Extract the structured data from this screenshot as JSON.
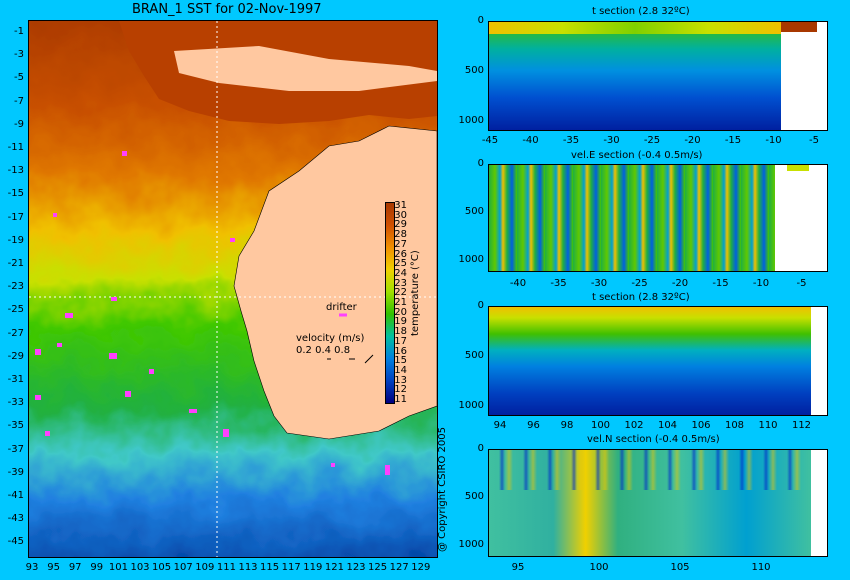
{
  "map": {
    "title": "BRAN_1 SST for 02-Nov-1997",
    "lat_labels": [
      "-1",
      "-3",
      "-5",
      "-7",
      "-9",
      "-11",
      "-13",
      "-15",
      "-17",
      "-19",
      "-21",
      "-23",
      "-25",
      "-27",
      "-29",
      "-31",
      "-33",
      "-35",
      "-37",
      "-39",
      "-41",
      "-43",
      "-45"
    ],
    "lon_labels": [
      "93",
      "95",
      "97",
      "99",
      "101",
      "103",
      "105",
      "107",
      "109",
      "111",
      "113",
      "115",
      "117",
      "119",
      "121",
      "123",
      "125",
      "127",
      "129"
    ],
    "colorbar_labels": [
      "31",
      "30",
      "29",
      "28",
      "27",
      "26",
      "25",
      "24",
      "23",
      "22",
      "21",
      "20",
      "19",
      "18",
      "17",
      "16",
      "15",
      "14",
      "13",
      "12",
      "11"
    ],
    "colorbar_title": "temperature (°C)",
    "drifter_label": "drifter",
    "velocity_label": "velocity (m/s)",
    "velocity_scale": "0.2 0.4 0.8",
    "copyright": "@ Copyright CSIRO 2005",
    "colors": {
      "land": "#ffc8a0",
      "marker": "#ff40ff",
      "background": "#00c8ff"
    }
  },
  "sections": [
    {
      "title": "t section (2.8      32ºC)",
      "y_labels": [
        "0",
        "500",
        "1000"
      ],
      "x_labels": [
        "-45",
        "-40",
        "-35",
        "-30",
        "-25",
        "-20",
        "-15",
        "-10",
        "-5"
      ]
    },
    {
      "title": "vel.E section (-0.4      0.5m/s)",
      "y_labels": [
        "0",
        "500",
        "1000"
      ],
      "x_labels": [
        "-40",
        "-35",
        "-30",
        "-25",
        "-20",
        "-15",
        "-10",
        "-5"
      ]
    },
    {
      "title": "t section (2.8      32ºC)",
      "y_labels": [
        "0",
        "500",
        "1000"
      ],
      "x_labels": [
        "94",
        "96",
        "98",
        "100",
        "102",
        "104",
        "106",
        "108",
        "110",
        "112"
      ]
    },
    {
      "title": "vel.N section (-0.4      0.5m/s)",
      "y_labels": [
        "0",
        "500",
        "1000"
      ],
      "x_labels": [
        "95",
        "100",
        "105",
        "110"
      ]
    }
  ]
}
